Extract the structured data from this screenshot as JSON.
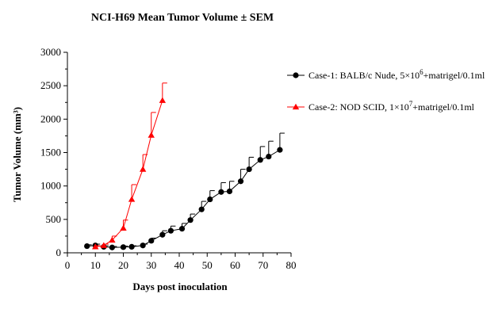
{
  "chart_data": {
    "type": "line",
    "title": "NCI-H69 Mean Tumor Volume ± SEM",
    "xlabel": "Days post inoculation",
    "ylabel": "Tumor Volume (mm³)",
    "xlim": [
      0,
      80
    ],
    "ylim": [
      0,
      3000
    ],
    "xticks": [
      "0",
      "10",
      "20",
      "30",
      "40",
      "50",
      "60",
      "70",
      "80"
    ],
    "yticks": [
      "0",
      "500",
      "1000",
      "1500",
      "2000",
      "2500",
      "3000"
    ],
    "grid": false,
    "legend_position": "right",
    "series": [
      {
        "name_parts": [
          "Case-1: BALB/c Nude, 5×10",
          "6",
          "+matrigel/0.1ml"
        ],
        "color": "#000000",
        "marker": "circle",
        "x": [
          7,
          10,
          13,
          16,
          20,
          23,
          27,
          30,
          34,
          37,
          41,
          44,
          48,
          51,
          55,
          58,
          62,
          65,
          69,
          72,
          76
        ],
        "y": [
          100,
          110,
          90,
          80,
          85,
          90,
          110,
          180,
          270,
          330,
          360,
          490,
          650,
          800,
          910,
          920,
          1070,
          1250,
          1390,
          1440,
          1540
        ],
        "err": [
          20,
          20,
          15,
          15,
          15,
          15,
          20,
          40,
          60,
          70,
          80,
          90,
          120,
          130,
          140,
          150,
          180,
          180,
          200,
          230,
          250
        ]
      },
      {
        "name_parts": [
          "Case-2: NOD SCID, 1×10",
          "7",
          "+matrigel/0.1ml"
        ],
        "color": "#ff0000",
        "marker": "triangle",
        "x": [
          10,
          13,
          16,
          20,
          23,
          27,
          30,
          34
        ],
        "y": [
          90,
          110,
          190,
          370,
          800,
          1250,
          1760,
          2280
        ],
        "err": [
          15,
          20,
          60,
          120,
          220,
          220,
          340,
          260
        ]
      }
    ]
  }
}
